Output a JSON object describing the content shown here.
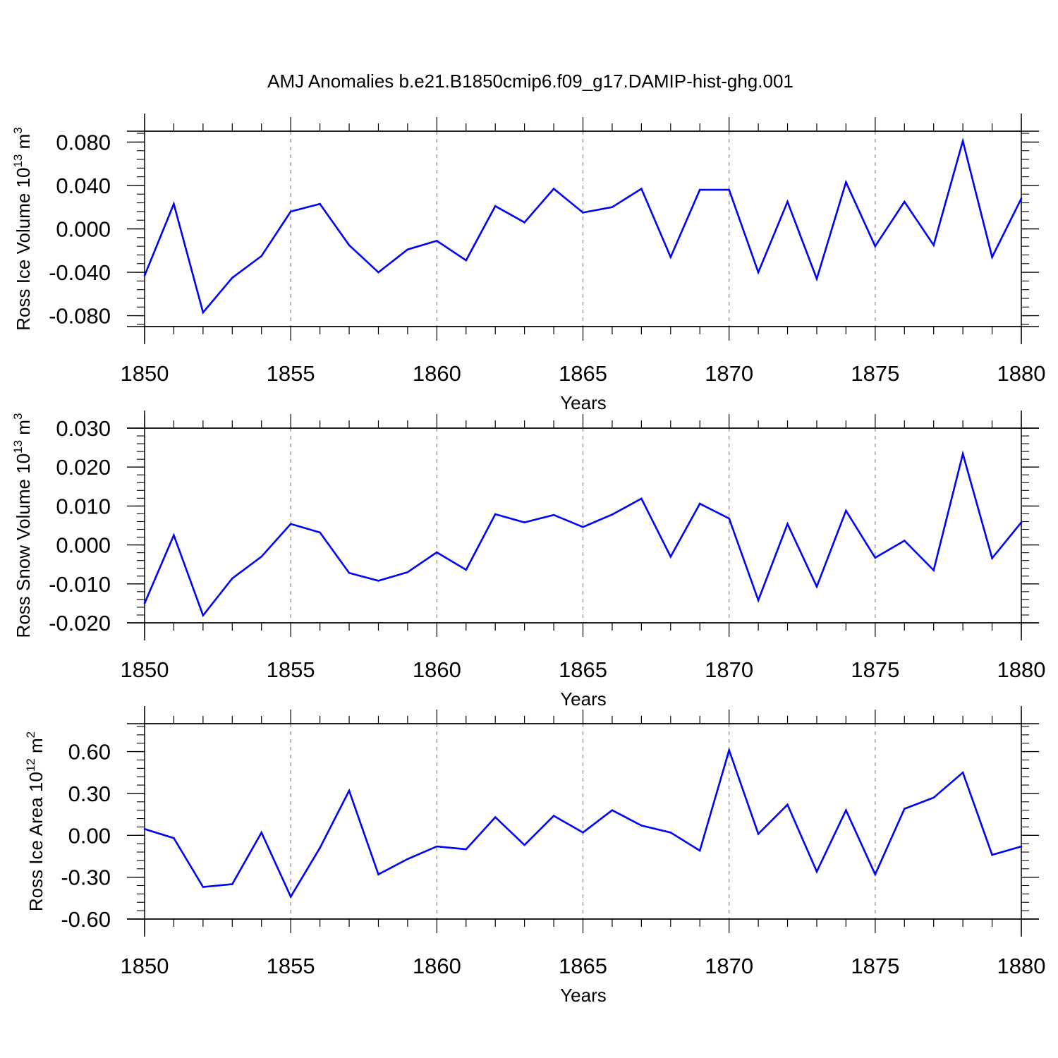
{
  "title": "AMJ Anomalies b.e21.B1850cmip6.f09_g17.DAMIP-hist-ghg.001",
  "colors": {
    "series": "#0000ff",
    "axis": "#000000",
    "grid": "#888888"
  },
  "chart_data": [
    {
      "type": "line",
      "title": "AMJ Anomalies b.e21.B1850cmip6.f09_g17.DAMIP-hist-ghg.001",
      "ylabel": "Ross Ice Volume",
      "ylabel_unit_base": "10",
      "ylabel_unit_exp": "13",
      "ylabel_unit_sym": "m",
      "ylabel_unit_pow": "3",
      "xlabel": "Years",
      "xlim": [
        1850,
        1880
      ],
      "ylim": [
        -0.09,
        0.09
      ],
      "xticks": [
        1850,
        1855,
        1860,
        1865,
        1870,
        1875,
        1880
      ],
      "xtick_labels": [
        "1850",
        "1855",
        "1860",
        "1865",
        "1870",
        "1875",
        "1880"
      ],
      "yticks": [
        -0.08,
        -0.04,
        0.0,
        0.04,
        0.08
      ],
      "ytick_labels": [
        "-0.080",
        "-0.040",
        "0.000",
        "0.040",
        "0.080"
      ],
      "minor_y_step": 0.008,
      "x": [
        1850,
        1851,
        1852,
        1853,
        1854,
        1855,
        1856,
        1857,
        1858,
        1859,
        1860,
        1861,
        1862,
        1863,
        1864,
        1865,
        1866,
        1867,
        1868,
        1869,
        1870,
        1871,
        1872,
        1873,
        1874,
        1875,
        1876,
        1877,
        1878,
        1879,
        1880
      ],
      "values": [
        -0.043,
        0.023,
        -0.077,
        -0.045,
        -0.025,
        0.016,
        0.023,
        -0.015,
        -0.04,
        -0.019,
        -0.011,
        -0.029,
        0.021,
        0.006,
        0.037,
        0.015,
        0.02,
        0.037,
        -0.026,
        0.036,
        0.036,
        -0.04,
        0.025,
        -0.046,
        0.043,
        -0.016,
        0.025,
        -0.015,
        0.081,
        -0.026,
        0.028
      ]
    },
    {
      "type": "line",
      "ylabel": "Ross Snow Volume",
      "ylabel_unit_base": "10",
      "ylabel_unit_exp": "13",
      "ylabel_unit_sym": "m",
      "ylabel_unit_pow": "3",
      "xlabel": "Years",
      "xlim": [
        1850,
        1880
      ],
      "ylim": [
        -0.02,
        0.03
      ],
      "xticks": [
        1850,
        1855,
        1860,
        1865,
        1870,
        1875,
        1880
      ],
      "xtick_labels": [
        "1850",
        "1855",
        "1860",
        "1865",
        "1870",
        "1875",
        "1880"
      ],
      "yticks": [
        -0.02,
        -0.01,
        0.0,
        0.01,
        0.02,
        0.03
      ],
      "ytick_labels": [
        "-0.020",
        "-0.010",
        "0.000",
        "0.010",
        "0.020",
        "0.030"
      ],
      "minor_y_step": 0.002,
      "x": [
        1850,
        1851,
        1852,
        1853,
        1854,
        1855,
        1856,
        1857,
        1858,
        1859,
        1860,
        1861,
        1862,
        1863,
        1864,
        1865,
        1866,
        1867,
        1868,
        1869,
        1870,
        1871,
        1872,
        1873,
        1874,
        1875,
        1876,
        1877,
        1878,
        1879,
        1880
      ],
      "values": [
        -0.015,
        0.0025,
        -0.0181,
        -0.0086,
        -0.003,
        0.0054,
        0.0032,
        -0.0072,
        -0.0092,
        -0.007,
        -0.0019,
        -0.0064,
        0.0079,
        0.0058,
        0.0077,
        0.0046,
        0.0078,
        0.0119,
        -0.003,
        0.0106,
        0.0068,
        -0.0142,
        0.0054,
        -0.0107,
        0.0088,
        -0.0033,
        0.0011,
        -0.0065,
        0.0234,
        -0.0034,
        0.0058
      ]
    },
    {
      "type": "line",
      "ylabel": "Ross Ice Area",
      "ylabel_unit_base": "10",
      "ylabel_unit_exp": "12",
      "ylabel_unit_sym": "m",
      "ylabel_unit_pow": "2",
      "xlabel": "Years",
      "xlim": [
        1850,
        1880
      ],
      "ylim": [
        -0.6,
        0.8
      ],
      "xticks": [
        1850,
        1855,
        1860,
        1865,
        1870,
        1875,
        1880
      ],
      "xtick_labels": [
        "1850",
        "1855",
        "1860",
        "1865",
        "1870",
        "1875",
        "1880"
      ],
      "yticks": [
        -0.6,
        -0.3,
        0.0,
        0.3,
        0.6
      ],
      "ytick_labels": [
        "-0.60",
        "-0.30",
        "0.00",
        "0.30",
        "0.60"
      ],
      "minor_y_step": 0.06,
      "x": [
        1850,
        1851,
        1852,
        1853,
        1854,
        1855,
        1856,
        1857,
        1858,
        1859,
        1860,
        1861,
        1862,
        1863,
        1864,
        1865,
        1866,
        1867,
        1868,
        1869,
        1870,
        1871,
        1872,
        1873,
        1874,
        1875,
        1876,
        1877,
        1878,
        1879,
        1880
      ],
      "values": [
        0.045,
        -0.02,
        -0.37,
        -0.35,
        0.02,
        -0.44,
        -0.09,
        0.32,
        -0.28,
        -0.17,
        -0.08,
        -0.1,
        0.13,
        -0.07,
        0.14,
        0.02,
        0.18,
        0.07,
        0.02,
        -0.11,
        0.61,
        0.01,
        0.22,
        -0.26,
        0.18,
        -0.28,
        0.19,
        0.27,
        0.45,
        -0.14,
        -0.08
      ]
    }
  ]
}
